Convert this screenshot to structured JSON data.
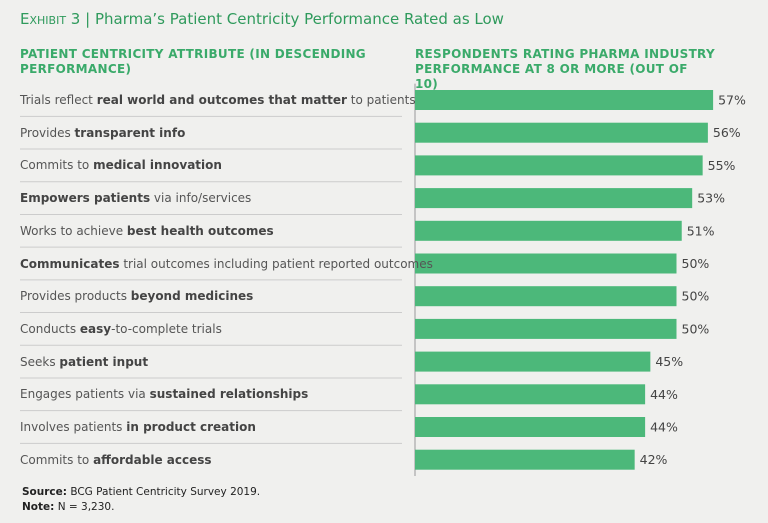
{
  "chart_data": {
    "type": "bar",
    "exhibit": "Exhibit 3",
    "title": "| Pharma’s Patient Centricity Performance Rated as Low",
    "category_header": "PATIENT CENTRICITY ATTRIBUTE (IN DESCENDING PERFORMANCE)",
    "value_header": "RESPONDENTS RATING PHARMA INDUSTRY PERFORMANCE AT 8 OR MORE (OUT OF 10)",
    "categories": [
      [
        {
          "text": "Trials reflect ",
          "bold": false
        },
        {
          "text": "real world and outcomes that matter",
          "bold": true
        },
        {
          "text": " to patients",
          "bold": false
        }
      ],
      [
        {
          "text": "Provides ",
          "bold": false
        },
        {
          "text": "transparent info",
          "bold": true
        }
      ],
      [
        {
          "text": "Commits to ",
          "bold": false
        },
        {
          "text": "medical innovation",
          "bold": true
        }
      ],
      [
        {
          "text": "Empowers patients",
          "bold": true
        },
        {
          "text": " via info/services",
          "bold": false
        }
      ],
      [
        {
          "text": "Works to achieve ",
          "bold": false
        },
        {
          "text": "best health outcomes",
          "bold": true
        }
      ],
      [
        {
          "text": "Communicates",
          "bold": true
        },
        {
          "text": " trial outcomes including patient reported outcomes",
          "bold": false
        }
      ],
      [
        {
          "text": "Provides products ",
          "bold": false
        },
        {
          "text": "beyond medicines",
          "bold": true
        }
      ],
      [
        {
          "text": "Conducts ",
          "bold": false
        },
        {
          "text": "easy",
          "bold": true
        },
        {
          "text": "-to-complete trials",
          "bold": false
        }
      ],
      [
        {
          "text": "Seeks ",
          "bold": false
        },
        {
          "text": "patient input",
          "bold": true
        }
      ],
      [
        {
          "text": "Engages patients via ",
          "bold": false
        },
        {
          "text": "sustained relationships",
          "bold": true
        }
      ],
      [
        {
          "text": "Involves patients ",
          "bold": false
        },
        {
          "text": "in product creation",
          "bold": true
        }
      ],
      [
        {
          "text": "Commits to ",
          "bold": false
        },
        {
          "text": "affordable access",
          "bold": true
        }
      ]
    ],
    "values": [
      57,
      56,
      55,
      53,
      51,
      50,
      50,
      50,
      45,
      44,
      44,
      42
    ],
    "value_labels": [
      "57%",
      "56%",
      "55%",
      "53%",
      "51%",
      "50%",
      "50%",
      "50%",
      "45%",
      "44%",
      "44%",
      "42%"
    ],
    "color": "#4cb87a",
    "xlim": [
      0,
      100
    ],
    "source_label": "Source:",
    "source": "BCG Patient Centricity Survey 2019.",
    "note_label": "Note:",
    "note": "N = 3,230."
  }
}
